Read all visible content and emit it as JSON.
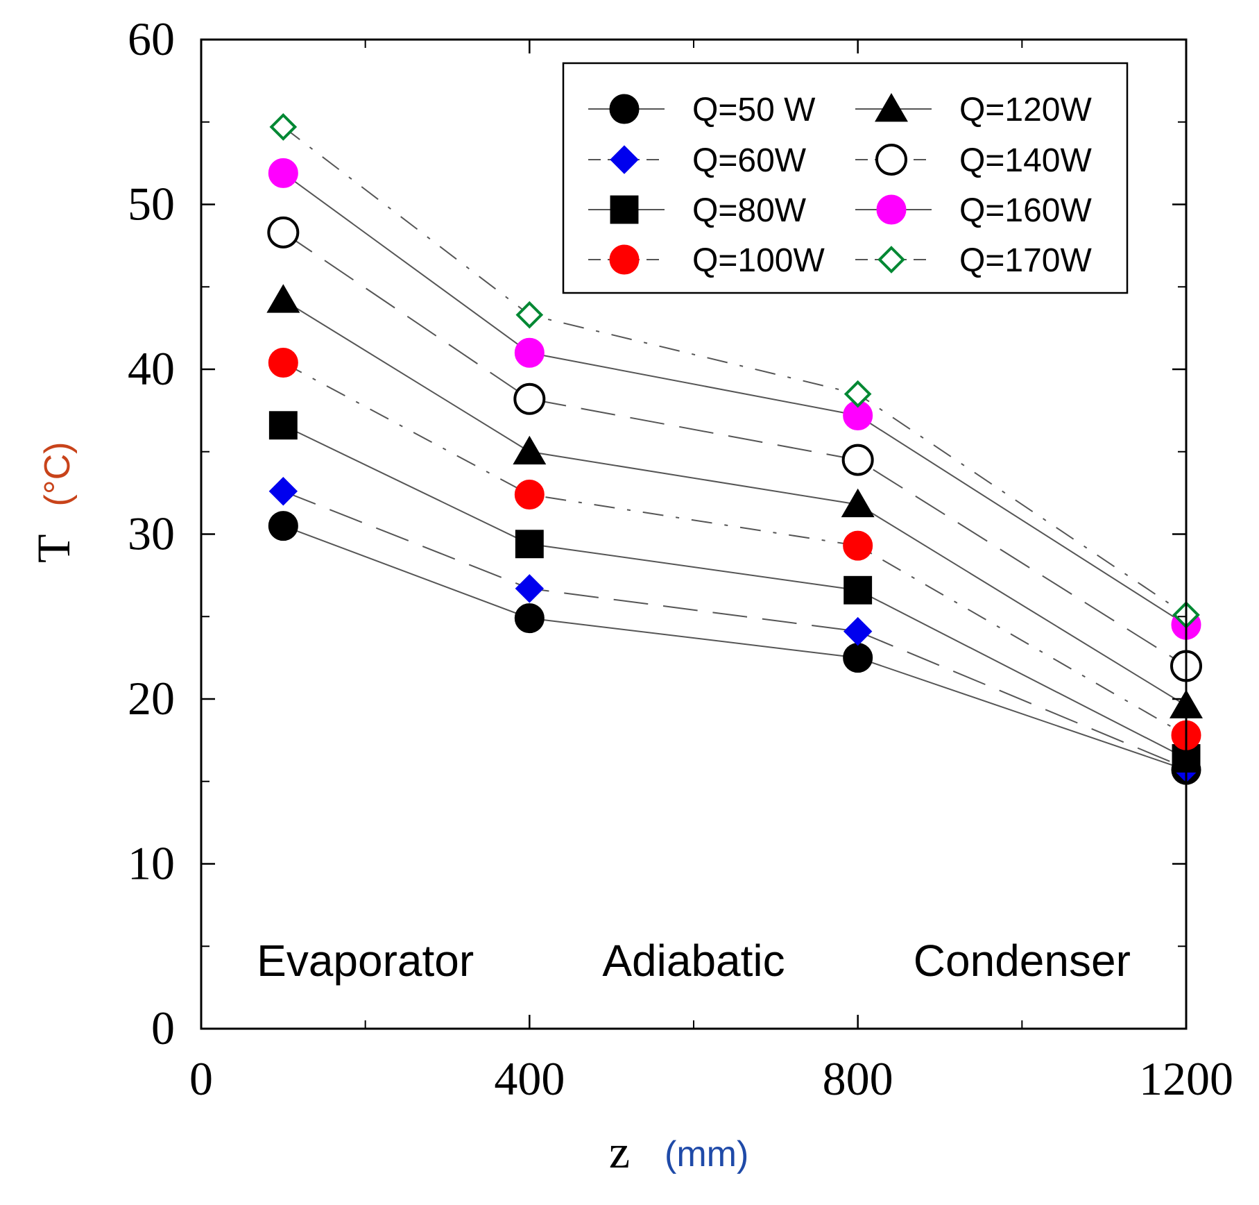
{
  "chart_data": {
    "type": "line",
    "title": "",
    "xlabel": "z",
    "xlabel_unit": "(mm)",
    "ylabel": "T",
    "ylabel_unit": "(°C)",
    "xlim": [
      0,
      1200
    ],
    "ylim": [
      0,
      60
    ],
    "x_ticks": [
      0,
      400,
      800,
      1200
    ],
    "x_tick_labels": [
      "0",
      "400",
      "800",
      "1200"
    ],
    "y_ticks": [
      0,
      10,
      20,
      30,
      40,
      50,
      60
    ],
    "y_tick_labels": [
      "0",
      "10",
      "20",
      "30",
      "40",
      "50",
      "60"
    ],
    "grid": false,
    "legend_position": "top-right",
    "x": [
      100,
      400,
      800,
      1200
    ],
    "regions": [
      "Evaporator",
      "Adiabatic",
      "Condenser"
    ],
    "series": [
      {
        "name": "Q=50 W",
        "values": [
          30.5,
          24.9,
          22.5,
          15.7
        ],
        "marker": "circle",
        "color": "#000000",
        "filled": true,
        "line": "solid"
      },
      {
        "name": "Q=60W",
        "values": [
          32.6,
          26.7,
          24.1,
          15.8
        ],
        "marker": "diamond",
        "color": "#0000ee",
        "filled": true,
        "line": "dashed"
      },
      {
        "name": "Q=80W",
        "values": [
          36.6,
          29.4,
          26.6,
          16.4
        ],
        "marker": "square",
        "color": "#000000",
        "filled": true,
        "line": "solid"
      },
      {
        "name": "Q=100W",
        "values": [
          40.4,
          32.4,
          29.3,
          17.8
        ],
        "marker": "circle",
        "color": "#ff0000",
        "filled": true,
        "line": "dashdot"
      },
      {
        "name": "Q=120W",
        "values": [
          44.2,
          35.0,
          31.8,
          19.6
        ],
        "marker": "triangle",
        "color": "#000000",
        "filled": true,
        "line": "solid"
      },
      {
        "name": "Q=140W",
        "values": [
          48.3,
          38.2,
          34.5,
          22.0
        ],
        "marker": "circle",
        "color": "#000000",
        "filled": false,
        "line": "dashed"
      },
      {
        "name": "Q=160W",
        "values": [
          51.9,
          41.0,
          37.2,
          24.5
        ],
        "marker": "circle",
        "color": "#ff00ff",
        "filled": true,
        "line": "solid"
      },
      {
        "name": "Q=170W",
        "values": [
          54.7,
          43.3,
          38.5,
          25.1
        ],
        "marker": "diamond",
        "color": "#008833",
        "filled": false,
        "line": "dashdot"
      }
    ]
  }
}
